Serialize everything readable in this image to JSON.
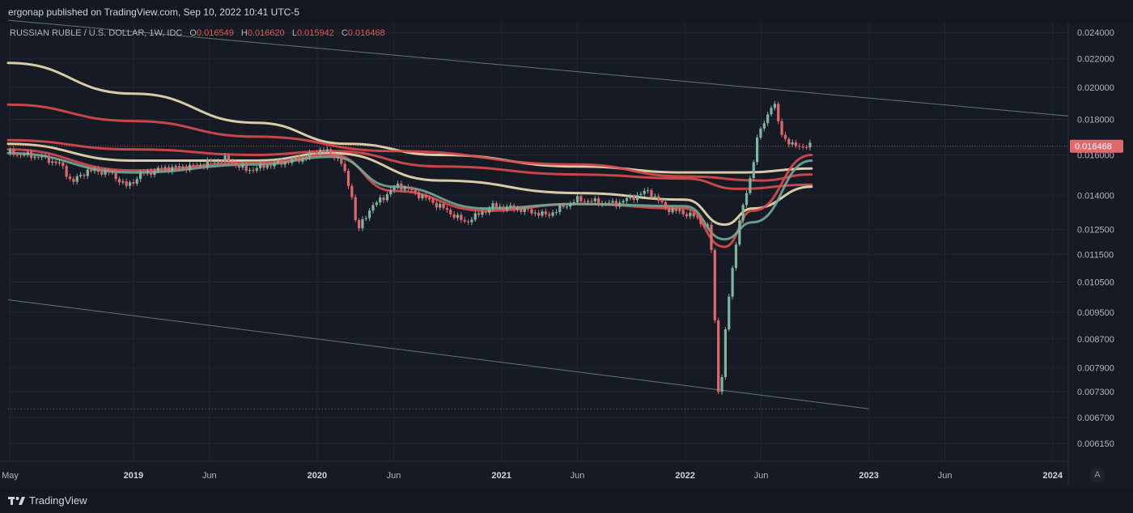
{
  "header": {
    "published": "ergonap published on TradingView.com, Sep 10, 2022 10:41 UTC-5"
  },
  "legend": {
    "symbol": "RUSSIAN RUBLE / U.S. DOLLAR, 1W, IDC",
    "open_label": "O",
    "open": "0.016549",
    "high_label": "H",
    "high": "0.016620",
    "low_label": "L",
    "low": "0.015942",
    "close_label": "C",
    "close": "0.016468"
  },
  "footer": {
    "brand": "TradingView",
    "auto_label": "A"
  },
  "colors": {
    "background": "#161a25",
    "grid": "#232733",
    "up": "#7fb59f",
    "down": "#e0686c",
    "ma_cream": "#ece0b5",
    "ma_red": "#d94b4f",
    "ma_teal": "#6fa897",
    "trendline": "#5e7a66",
    "price_badge": "#e0686c"
  },
  "chart_data": {
    "type": "candlestick",
    "title": "RUSSIAN RUBLE / U.S. DOLLAR, 1W, IDC",
    "y_scale": "log",
    "ylim": [
      0.0058,
      0.0248
    ],
    "xlim": [
      "2018-04-27",
      "2024-02-01"
    ],
    "y_ticks": [
      0.024,
      0.022,
      0.02,
      0.018,
      0.016,
      0.014,
      0.0125,
      0.0115,
      0.0105,
      0.0095,
      0.0087,
      0.0079,
      0.0073,
      0.0067,
      0.00615
    ],
    "y_tick_labels": [
      "0.024000",
      "0.022000",
      "0.020000",
      "0.018000",
      "0.016000",
      "0.014000",
      "0.012500",
      "0.011500",
      "0.010500",
      "0.009500",
      "0.008700",
      "0.007900",
      "0.007300",
      "0.006700",
      "0.006150"
    ],
    "x_ticks": [
      {
        "date": "2018-05-01",
        "label": "May"
      },
      {
        "date": "2019-01-01",
        "label": "2019"
      },
      {
        "date": "2019-06-01",
        "label": "Jun"
      },
      {
        "date": "2020-01-01",
        "label": "2020"
      },
      {
        "date": "2020-06-01",
        "label": "Jun"
      },
      {
        "date": "2021-01-01",
        "label": "2021"
      },
      {
        "date": "2021-06-01",
        "label": "Jun"
      },
      {
        "date": "2022-01-01",
        "label": "2022"
      },
      {
        "date": "2022-06-01",
        "label": "Jun"
      },
      {
        "date": "2023-01-01",
        "label": "2023"
      },
      {
        "date": "2023-06-01",
        "label": "Jun"
      },
      {
        "date": "2024-01-01",
        "label": "2024"
      }
    ],
    "last_price": 0.016468,
    "last_price_label": "0.016468",
    "price_points": [
      [
        "2018-05-01",
        0.0161
      ],
      [
        "2018-07-01",
        0.0159
      ],
      [
        "2018-08-10",
        0.0155
      ],
      [
        "2018-09-01",
        0.0146
      ],
      [
        "2018-10-01",
        0.0152
      ],
      [
        "2018-11-15",
        0.0151
      ],
      [
        "2018-12-20",
        0.0144
      ],
      [
        "2019-01-15",
        0.015
      ],
      [
        "2019-03-01",
        0.0153
      ],
      [
        "2019-05-01",
        0.0154
      ],
      [
        "2019-07-01",
        0.0158
      ],
      [
        "2019-08-15",
        0.0152
      ],
      [
        "2019-10-01",
        0.0155
      ],
      [
        "2019-12-01",
        0.0158
      ],
      [
        "2020-01-10",
        0.0163
      ],
      [
        "2020-02-15",
        0.0158
      ],
      [
        "2020-03-10",
        0.014
      ],
      [
        "2020-03-20",
        0.0124
      ],
      [
        "2020-04-15",
        0.0134
      ],
      [
        "2020-06-10",
        0.0145
      ],
      [
        "2020-07-15",
        0.0141
      ],
      [
        "2020-09-01",
        0.0135
      ],
      [
        "2020-10-20",
        0.0128
      ],
      [
        "2020-12-15",
        0.0135
      ],
      [
        "2021-02-01",
        0.0134
      ],
      [
        "2021-04-01",
        0.0131
      ],
      [
        "2021-06-01",
        0.0138
      ],
      [
        "2021-08-15",
        0.0136
      ],
      [
        "2021-10-20",
        0.0142
      ],
      [
        "2021-11-25",
        0.0134
      ],
      [
        "2022-01-15",
        0.0131
      ],
      [
        "2022-02-15",
        0.0126
      ],
      [
        "2022-02-25",
        0.0113
      ],
      [
        "2022-03-05",
        0.0075
      ],
      [
        "2022-03-12",
        0.0072
      ],
      [
        "2022-03-25",
        0.0095
      ],
      [
        "2022-04-15",
        0.0125
      ],
      [
        "2022-05-10",
        0.0148
      ],
      [
        "2022-05-25",
        0.017
      ],
      [
        "2022-06-10",
        0.018
      ],
      [
        "2022-06-25",
        0.0192
      ],
      [
        "2022-07-10",
        0.0172
      ],
      [
        "2022-08-01",
        0.0165
      ],
      [
        "2022-09-09",
        0.016468
      ]
    ],
    "moving_averages": [
      {
        "color": "ma_cream",
        "points": [
          [
            "2018-04-27",
            0.0217
          ],
          [
            "2019-01-01",
            0.0196
          ],
          [
            "2019-09-01",
            0.0178
          ],
          [
            "2020-03-01",
            0.0166
          ],
          [
            "2020-09-01",
            0.016
          ],
          [
            "2021-06-01",
            0.0154
          ],
          [
            "2022-01-01",
            0.0151
          ],
          [
            "2022-05-01",
            0.0151
          ],
          [
            "2022-09-09",
            0.0153
          ]
        ]
      },
      {
        "color": "ma_red",
        "points": [
          [
            "2018-04-27",
            0.0189
          ],
          [
            "2019-01-01",
            0.0179
          ],
          [
            "2019-09-01",
            0.017
          ],
          [
            "2020-06-01",
            0.0162
          ],
          [
            "2021-06-01",
            0.0155
          ],
          [
            "2022-01-01",
            0.0149
          ],
          [
            "2022-06-01",
            0.0147
          ],
          [
            "2022-09-09",
            0.015
          ]
        ]
      },
      {
        "color": "ma_red",
        "points": [
          [
            "2018-04-27",
            0.0168
          ],
          [
            "2019-01-01",
            0.0163
          ],
          [
            "2019-09-01",
            0.016
          ],
          [
            "2020-02-01",
            0.0162
          ],
          [
            "2020-09-01",
            0.0154
          ],
          [
            "2021-06-01",
            0.015
          ],
          [
            "2022-01-01",
            0.0148
          ],
          [
            "2022-04-15",
            0.0143
          ],
          [
            "2022-09-09",
            0.0145
          ]
        ]
      },
      {
        "color": "ma_cream",
        "points": [
          [
            "2018-04-27",
            0.0166
          ],
          [
            "2019-01-01",
            0.0157
          ],
          [
            "2019-09-01",
            0.0157
          ],
          [
            "2020-02-01",
            0.0161
          ],
          [
            "2020-09-01",
            0.0147
          ],
          [
            "2021-06-01",
            0.0141
          ],
          [
            "2022-01-01",
            0.0138
          ],
          [
            "2022-03-20",
            0.0127
          ],
          [
            "2022-05-15",
            0.0134
          ],
          [
            "2022-09-09",
            0.0144
          ]
        ]
      },
      {
        "color": "ma_red",
        "points": [
          [
            "2018-04-27",
            0.0163
          ],
          [
            "2019-01-01",
            0.0152
          ],
          [
            "2019-09-01",
            0.0156
          ],
          [
            "2020-02-01",
            0.016
          ],
          [
            "2020-06-01",
            0.0142
          ],
          [
            "2020-12-01",
            0.0133
          ],
          [
            "2021-06-01",
            0.0136
          ],
          [
            "2022-01-01",
            0.0134
          ],
          [
            "2022-03-20",
            0.0118
          ],
          [
            "2022-05-15",
            0.0133
          ],
          [
            "2022-09-09",
            0.016
          ]
        ]
      },
      {
        "color": "ma_teal",
        "points": [
          [
            "2018-04-27",
            0.0161
          ],
          [
            "2019-01-01",
            0.0151
          ],
          [
            "2019-09-01",
            0.0155
          ],
          [
            "2020-02-01",
            0.0159
          ],
          [
            "2020-06-01",
            0.0144
          ],
          [
            "2020-12-01",
            0.0134
          ],
          [
            "2021-06-01",
            0.0136
          ],
          [
            "2022-01-01",
            0.0135
          ],
          [
            "2022-03-20",
            0.0121
          ],
          [
            "2022-05-15",
            0.0128
          ],
          [
            "2022-09-09",
            0.0157
          ]
        ]
      }
    ],
    "trendlines": [
      {
        "from": [
          "2018-04-27",
          0.025
        ],
        "to": [
          "2024-02-01",
          0.0182
        ]
      },
      {
        "from": [
          "2018-04-27",
          0.0099
        ],
        "to": [
          "2023-01-01",
          0.0069
        ]
      }
    ],
    "dotted_levels": [
      0.0069
    ]
  }
}
